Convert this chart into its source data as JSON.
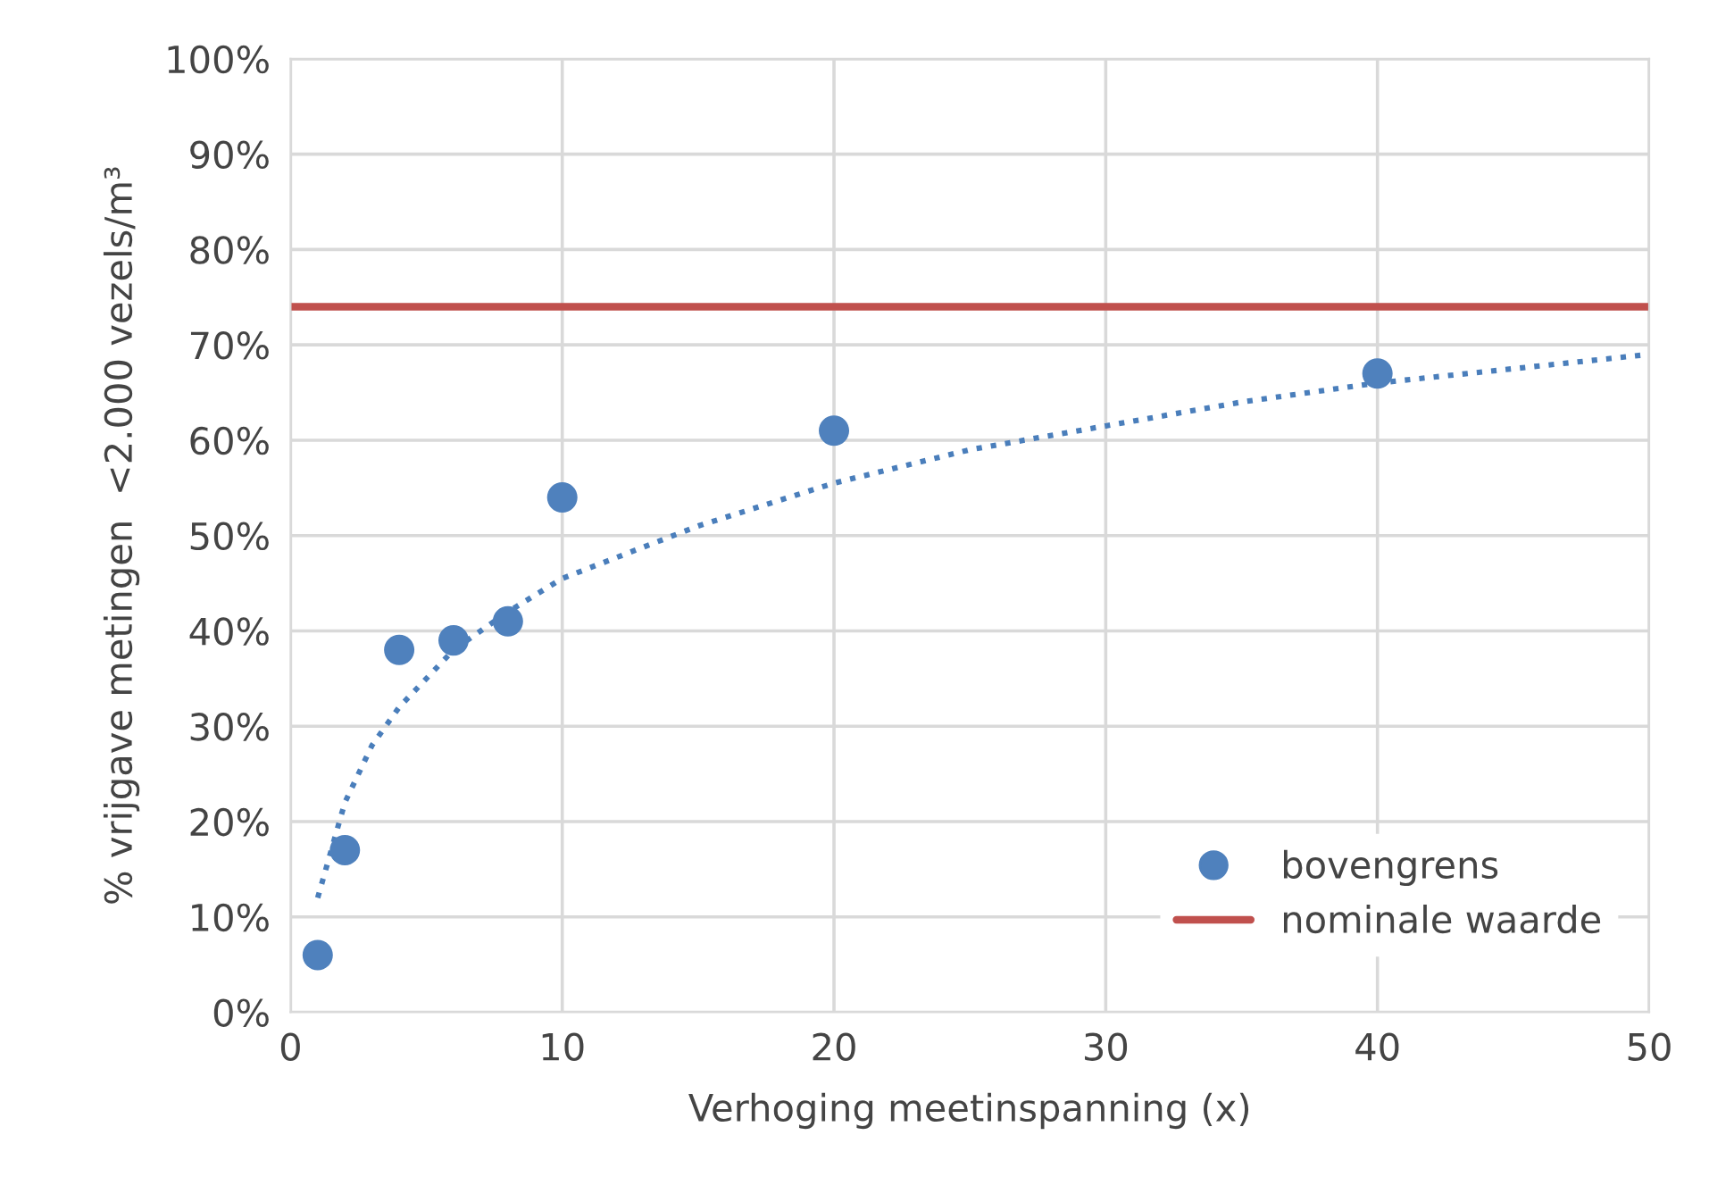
{
  "chart_data": {
    "type": "scatter",
    "xlabel": "Verhoging meetinspanning (x)",
    "ylabel": "% vrijgave metingen  <2.000 vezels/m³",
    "xlim": [
      0,
      50
    ],
    "xticks": [
      0,
      10,
      20,
      30,
      40,
      50
    ],
    "ylim": [
      0,
      100
    ],
    "yticks": [
      {
        "value": 0,
        "label": "0%"
      },
      {
        "value": 10,
        "label": "10%"
      },
      {
        "value": 20,
        "label": "20%"
      },
      {
        "value": 30,
        "label": "30%"
      },
      {
        "value": 40,
        "label": "40%"
      },
      {
        "value": 50,
        "label": "50%"
      },
      {
        "value": 60,
        "label": "60%"
      },
      {
        "value": 70,
        "label": "70%"
      },
      {
        "value": 80,
        "label": "80%"
      },
      {
        "value": 90,
        "label": "90%"
      },
      {
        "value": 100,
        "label": "100%"
      }
    ],
    "grid": true,
    "legend": "bottom right",
    "series": [
      {
        "name": "bovengrens",
        "marker": "circle",
        "color": "#4f81bd",
        "x": [
          1,
          2,
          4,
          6,
          8,
          10,
          20,
          40
        ],
        "values": [
          6,
          17,
          38,
          39,
          41,
          54,
          61,
          67
        ]
      },
      {
        "type": "line",
        "marker": "none",
        "color": "#4a7ebb",
        "line_style": "dotted",
        "x": [
          1,
          2,
          3,
          4,
          6,
          8,
          10,
          15,
          20,
          25,
          30,
          35,
          40,
          45,
          50
        ],
        "values": [
          12,
          22,
          28,
          32,
          38,
          42,
          45.5,
          51,
          55.5,
          59,
          61.5,
          64,
          66,
          67.5,
          69
        ]
      }
    ],
    "ref_lines": [
      {
        "axis": "y",
        "value": 74,
        "label": "nominale waarde",
        "color": "#c0504d",
        "line_style": "solid"
      }
    ]
  }
}
